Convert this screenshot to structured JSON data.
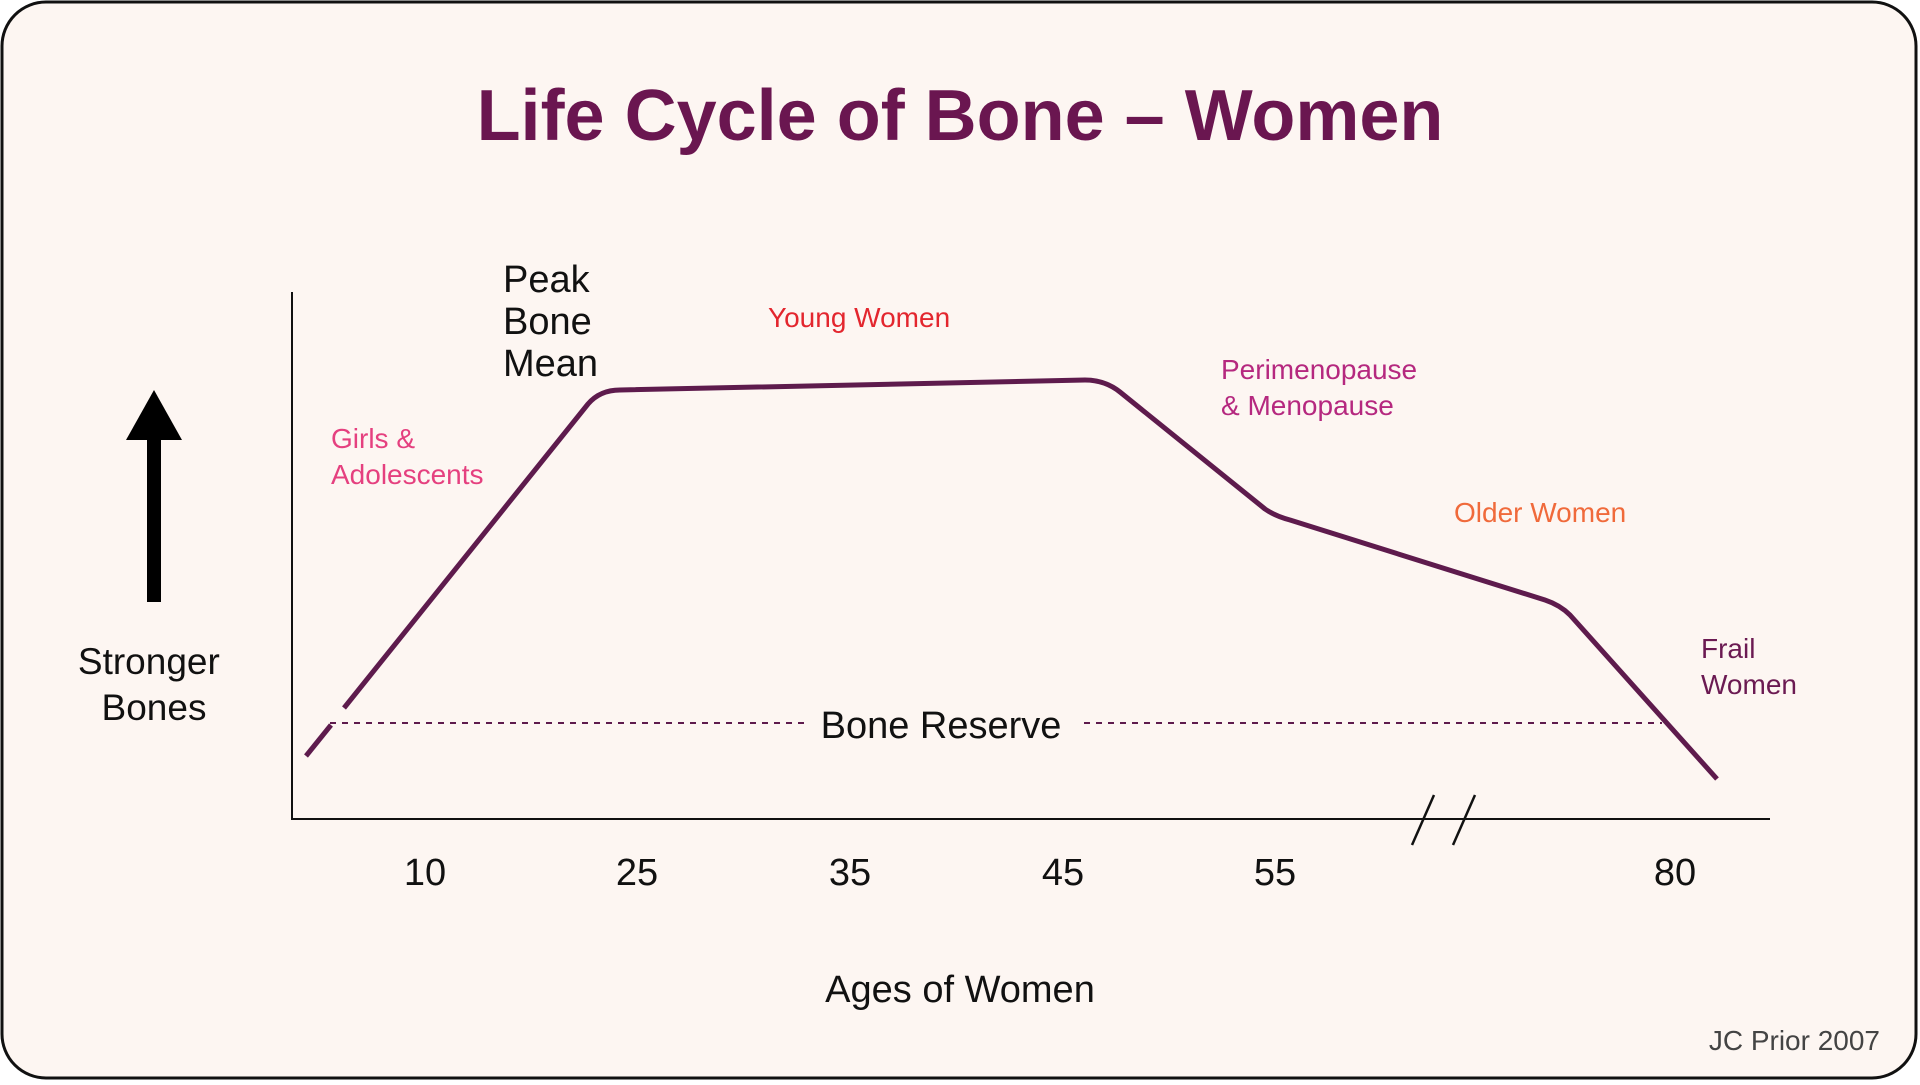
{
  "chart_data": {
    "type": "line",
    "title": "Life Cycle of Bone – Women",
    "xlabel": "Ages of Women",
    "ylabel": [
      "Stronger",
      "Bones"
    ],
    "x_ticks": [
      "10",
      "25",
      "35",
      "45",
      "55",
      "80"
    ],
    "axis_break_between": [
      "55",
      "80"
    ],
    "series": [
      {
        "points": [
          {
            "age": 5,
            "level": 0.07
          },
          {
            "age": 23,
            "level": 0.95
          },
          {
            "age": 25,
            "level": 0.97
          },
          {
            "age": 46.5,
            "level": 0.99
          },
          {
            "age": 48,
            "level": 0.97
          },
          {
            "age": 54,
            "level": 0.68
          },
          {
            "age": 57,
            "level": 0.63
          },
          {
            "age": 75,
            "level": 0.47
          },
          {
            "age": 77,
            "level": 0.42
          },
          {
            "age": 83,
            "level": 0.09
          }
        ]
      }
    ],
    "reference_line": {
      "label": "Bone Reserve",
      "level": 0.2,
      "style": "dashed"
    },
    "annotations": {
      "peak": [
        "Peak",
        "Bone",
        "Mean"
      ],
      "girls": [
        "Girls &",
        "Adolescents"
      ],
      "young": [
        "Young Women"
      ],
      "peri": [
        "Perimenopause",
        "& Menopause"
      ],
      "older": [
        "Older Women"
      ],
      "frail": [
        "Frail",
        "Women"
      ]
    },
    "credit": "JC Prior 2007",
    "colors": {
      "background": "#fdf6f2",
      "line": "#5e1b4d",
      "title": "#6a1650",
      "girls": "#e5407f",
      "young": "#e3262e",
      "peri": "#b5287f",
      "older": "#f06a3b",
      "frail": "#6b1a52",
      "text": "#111111"
    }
  }
}
